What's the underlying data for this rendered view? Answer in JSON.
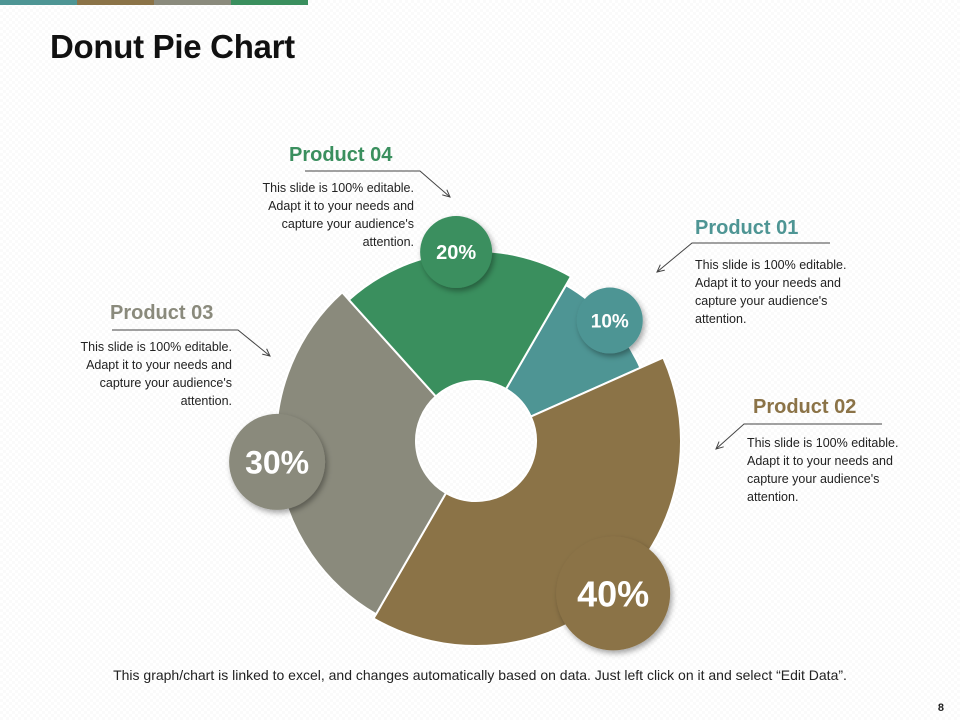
{
  "title": "Donut Pie Chart",
  "colors": {
    "top_bar": [
      "#4e9594",
      "#8b7347",
      "#8a8a7c",
      "#3a8f5e"
    ]
  },
  "chart_data": {
    "type": "pie",
    "variant": "donut",
    "title": "Donut Pie Chart",
    "series": [
      {
        "name": "Product 01",
        "value": 10,
        "label": "10%",
        "color": "#4e9594",
        "description": "This slide is 100% editable. Adapt it to your needs and capture your audience's attention."
      },
      {
        "name": "Product 02",
        "value": 40,
        "label": "40%",
        "color": "#8b7347",
        "description": "This slide is 100% editable. Adapt it to your needs and capture your audience's attention."
      },
      {
        "name": "Product 03",
        "value": 30,
        "label": "30%",
        "color": "#8a8a7c",
        "description": "This slide is 100% editable. Adapt it to your needs and capture your audience's attention."
      },
      {
        "name": "Product 04",
        "value": 20,
        "label": "20%",
        "color": "#3a8f5e",
        "description": "This slide is 100% editable. Adapt it to your needs and capture your audience's attention."
      }
    ]
  },
  "footer": "This graph/chart is linked to excel, and changes automatically  based on data. Just left click on it and select “Edit Data”.",
  "page_number": "8"
}
